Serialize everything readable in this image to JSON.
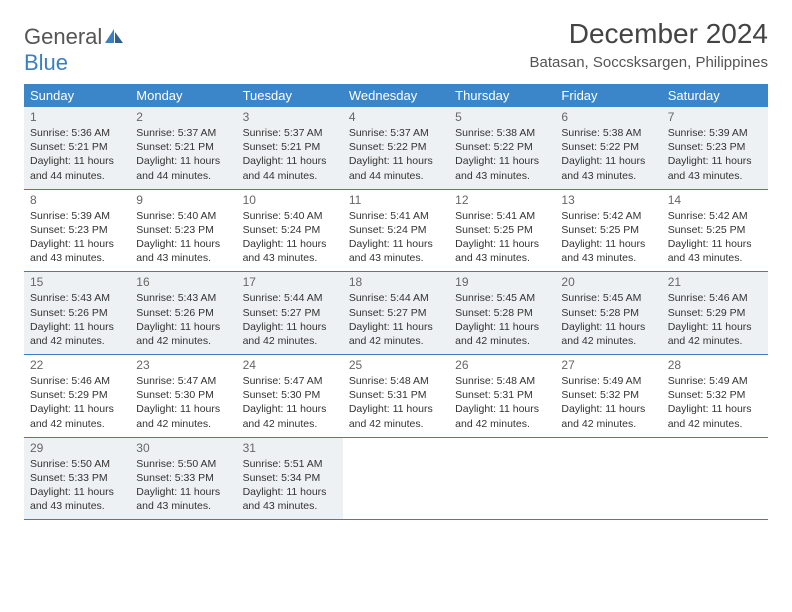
{
  "logo": {
    "text1": "General",
    "text2": "Blue",
    "color_general": "#555555",
    "color_blue": "#3a7fc4"
  },
  "title": "December 2024",
  "location": "Batasan, Soccsksargen, Philippines",
  "weekdays": [
    "Sunday",
    "Monday",
    "Tuesday",
    "Wednesday",
    "Thursday",
    "Friday",
    "Saturday"
  ],
  "colors": {
    "header_bg": "#3a86c8",
    "header_text": "#ffffff",
    "row_border": "#3a7fc4",
    "shaded_bg": "#eef1f3"
  },
  "weeks": [
    {
      "shaded": true,
      "days": [
        {
          "num": "1",
          "sunrise": "Sunrise: 5:36 AM",
          "sunset": "Sunset: 5:21 PM",
          "daylight1": "Daylight: 11 hours",
          "daylight2": "and 44 minutes."
        },
        {
          "num": "2",
          "sunrise": "Sunrise: 5:37 AM",
          "sunset": "Sunset: 5:21 PM",
          "daylight1": "Daylight: 11 hours",
          "daylight2": "and 44 minutes."
        },
        {
          "num": "3",
          "sunrise": "Sunrise: 5:37 AM",
          "sunset": "Sunset: 5:21 PM",
          "daylight1": "Daylight: 11 hours",
          "daylight2": "and 44 minutes."
        },
        {
          "num": "4",
          "sunrise": "Sunrise: 5:37 AM",
          "sunset": "Sunset: 5:22 PM",
          "daylight1": "Daylight: 11 hours",
          "daylight2": "and 44 minutes."
        },
        {
          "num": "5",
          "sunrise": "Sunrise: 5:38 AM",
          "sunset": "Sunset: 5:22 PM",
          "daylight1": "Daylight: 11 hours",
          "daylight2": "and 43 minutes."
        },
        {
          "num": "6",
          "sunrise": "Sunrise: 5:38 AM",
          "sunset": "Sunset: 5:22 PM",
          "daylight1": "Daylight: 11 hours",
          "daylight2": "and 43 minutes."
        },
        {
          "num": "7",
          "sunrise": "Sunrise: 5:39 AM",
          "sunset": "Sunset: 5:23 PM",
          "daylight1": "Daylight: 11 hours",
          "daylight2": "and 43 minutes."
        }
      ]
    },
    {
      "shaded": false,
      "days": [
        {
          "num": "8",
          "sunrise": "Sunrise: 5:39 AM",
          "sunset": "Sunset: 5:23 PM",
          "daylight1": "Daylight: 11 hours",
          "daylight2": "and 43 minutes."
        },
        {
          "num": "9",
          "sunrise": "Sunrise: 5:40 AM",
          "sunset": "Sunset: 5:23 PM",
          "daylight1": "Daylight: 11 hours",
          "daylight2": "and 43 minutes."
        },
        {
          "num": "10",
          "sunrise": "Sunrise: 5:40 AM",
          "sunset": "Sunset: 5:24 PM",
          "daylight1": "Daylight: 11 hours",
          "daylight2": "and 43 minutes."
        },
        {
          "num": "11",
          "sunrise": "Sunrise: 5:41 AM",
          "sunset": "Sunset: 5:24 PM",
          "daylight1": "Daylight: 11 hours",
          "daylight2": "and 43 minutes."
        },
        {
          "num": "12",
          "sunrise": "Sunrise: 5:41 AM",
          "sunset": "Sunset: 5:25 PM",
          "daylight1": "Daylight: 11 hours",
          "daylight2": "and 43 minutes."
        },
        {
          "num": "13",
          "sunrise": "Sunrise: 5:42 AM",
          "sunset": "Sunset: 5:25 PM",
          "daylight1": "Daylight: 11 hours",
          "daylight2": "and 43 minutes."
        },
        {
          "num": "14",
          "sunrise": "Sunrise: 5:42 AM",
          "sunset": "Sunset: 5:25 PM",
          "daylight1": "Daylight: 11 hours",
          "daylight2": "and 43 minutes."
        }
      ]
    },
    {
      "shaded": true,
      "days": [
        {
          "num": "15",
          "sunrise": "Sunrise: 5:43 AM",
          "sunset": "Sunset: 5:26 PM",
          "daylight1": "Daylight: 11 hours",
          "daylight2": "and 42 minutes."
        },
        {
          "num": "16",
          "sunrise": "Sunrise: 5:43 AM",
          "sunset": "Sunset: 5:26 PM",
          "daylight1": "Daylight: 11 hours",
          "daylight2": "and 42 minutes."
        },
        {
          "num": "17",
          "sunrise": "Sunrise: 5:44 AM",
          "sunset": "Sunset: 5:27 PM",
          "daylight1": "Daylight: 11 hours",
          "daylight2": "and 42 minutes."
        },
        {
          "num": "18",
          "sunrise": "Sunrise: 5:44 AM",
          "sunset": "Sunset: 5:27 PM",
          "daylight1": "Daylight: 11 hours",
          "daylight2": "and 42 minutes."
        },
        {
          "num": "19",
          "sunrise": "Sunrise: 5:45 AM",
          "sunset": "Sunset: 5:28 PM",
          "daylight1": "Daylight: 11 hours",
          "daylight2": "and 42 minutes."
        },
        {
          "num": "20",
          "sunrise": "Sunrise: 5:45 AM",
          "sunset": "Sunset: 5:28 PM",
          "daylight1": "Daylight: 11 hours",
          "daylight2": "and 42 minutes."
        },
        {
          "num": "21",
          "sunrise": "Sunrise: 5:46 AM",
          "sunset": "Sunset: 5:29 PM",
          "daylight1": "Daylight: 11 hours",
          "daylight2": "and 42 minutes."
        }
      ]
    },
    {
      "shaded": false,
      "days": [
        {
          "num": "22",
          "sunrise": "Sunrise: 5:46 AM",
          "sunset": "Sunset: 5:29 PM",
          "daylight1": "Daylight: 11 hours",
          "daylight2": "and 42 minutes."
        },
        {
          "num": "23",
          "sunrise": "Sunrise: 5:47 AM",
          "sunset": "Sunset: 5:30 PM",
          "daylight1": "Daylight: 11 hours",
          "daylight2": "and 42 minutes."
        },
        {
          "num": "24",
          "sunrise": "Sunrise: 5:47 AM",
          "sunset": "Sunset: 5:30 PM",
          "daylight1": "Daylight: 11 hours",
          "daylight2": "and 42 minutes."
        },
        {
          "num": "25",
          "sunrise": "Sunrise: 5:48 AM",
          "sunset": "Sunset: 5:31 PM",
          "daylight1": "Daylight: 11 hours",
          "daylight2": "and 42 minutes."
        },
        {
          "num": "26",
          "sunrise": "Sunrise: 5:48 AM",
          "sunset": "Sunset: 5:31 PM",
          "daylight1": "Daylight: 11 hours",
          "daylight2": "and 42 minutes."
        },
        {
          "num": "27",
          "sunrise": "Sunrise: 5:49 AM",
          "sunset": "Sunset: 5:32 PM",
          "daylight1": "Daylight: 11 hours",
          "daylight2": "and 42 minutes."
        },
        {
          "num": "28",
          "sunrise": "Sunrise: 5:49 AM",
          "sunset": "Sunset: 5:32 PM",
          "daylight1": "Daylight: 11 hours",
          "daylight2": "and 42 minutes."
        }
      ]
    },
    {
      "shaded": true,
      "days": [
        {
          "num": "29",
          "sunrise": "Sunrise: 5:50 AM",
          "sunset": "Sunset: 5:33 PM",
          "daylight1": "Daylight: 11 hours",
          "daylight2": "and 43 minutes."
        },
        {
          "num": "30",
          "sunrise": "Sunrise: 5:50 AM",
          "sunset": "Sunset: 5:33 PM",
          "daylight1": "Daylight: 11 hours",
          "daylight2": "and 43 minutes."
        },
        {
          "num": "31",
          "sunrise": "Sunrise: 5:51 AM",
          "sunset": "Sunset: 5:34 PM",
          "daylight1": "Daylight: 11 hours",
          "daylight2": "and 43 minutes."
        },
        null,
        null,
        null,
        null
      ]
    }
  ]
}
